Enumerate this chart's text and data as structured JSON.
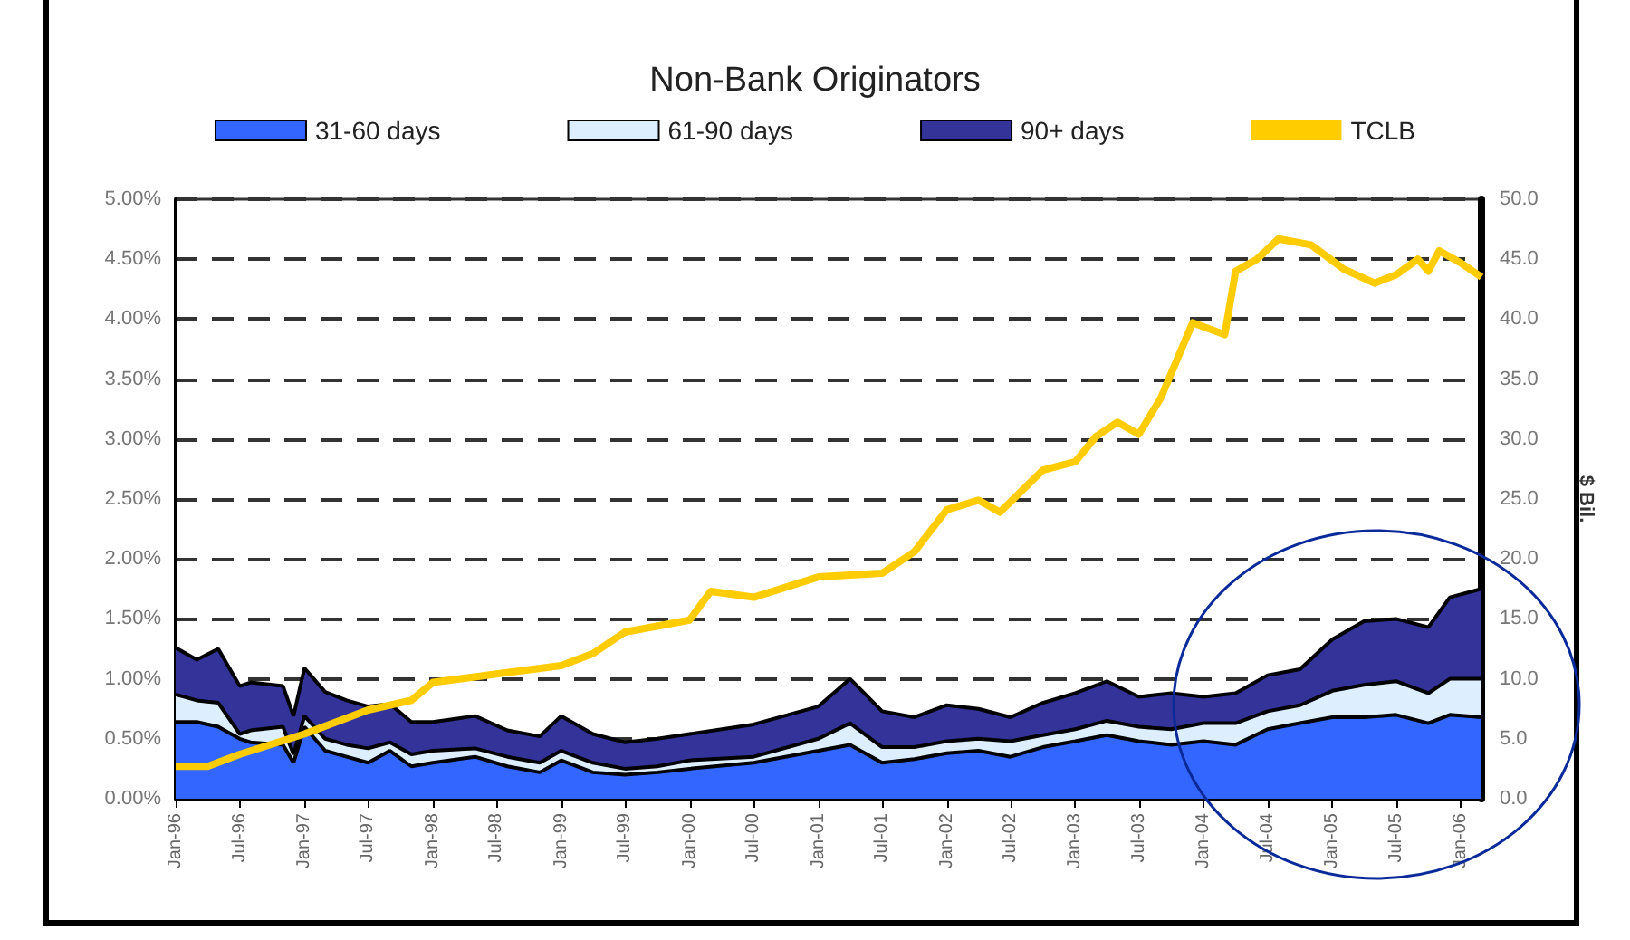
{
  "chart_data": {
    "type": "area",
    "title": "Non-Bank Originators",
    "y2label": "$ Bil.",
    "stacked": true,
    "legend": "top",
    "grid": "y",
    "x": [
      "1996-01",
      "1996-03",
      "1996-05",
      "1996-07",
      "1996-08",
      "1996-11",
      "1996-12",
      "1997-01",
      "1997-03",
      "1997-05",
      "1997-07",
      "1997-09",
      "1997-11",
      "1998-01",
      "1998-05",
      "1998-08",
      "1998-11",
      "1999-01",
      "1999-04",
      "1999-07",
      "1999-10",
      "2000-01",
      "2000-07",
      "2001-01",
      "2001-04",
      "2001-07",
      "2001-10",
      "2002-01",
      "2002-04",
      "2002-07",
      "2002-10",
      "2003-01",
      "2003-04",
      "2003-07",
      "2003-10",
      "2004-01",
      "2004-04",
      "2004-07",
      "2004-10",
      "2005-01",
      "2005-04",
      "2005-07",
      "2005-10",
      "2005-12",
      "2006-03"
    ],
    "series": [
      {
        "name": "31-60 days",
        "color": "#3366ff",
        "values": [
          0.64,
          0.64,
          0.6,
          0.5,
          0.47,
          0.45,
          0.3,
          0.6,
          0.4,
          0.35,
          0.3,
          0.4,
          0.27,
          0.3,
          0.35,
          0.27,
          0.22,
          0.32,
          0.22,
          0.2,
          0.22,
          0.25,
          0.3,
          0.4,
          0.45,
          0.3,
          0.33,
          0.38,
          0.4,
          0.35,
          0.43,
          0.48,
          0.53,
          0.48,
          0.45,
          0.48,
          0.45,
          0.58,
          0.63,
          0.68,
          0.68,
          0.7,
          0.63,
          0.7,
          0.68
        ]
      },
      {
        "name": "61-90 days",
        "color": "#ddeeff",
        "values": [
          0.23,
          0.18,
          0.2,
          0.04,
          0.1,
          0.15,
          0.07,
          0.09,
          0.1,
          0.1,
          0.12,
          0.07,
          0.1,
          0.1,
          0.07,
          0.08,
          0.08,
          0.08,
          0.08,
          0.05,
          0.05,
          0.07,
          0.05,
          0.1,
          0.18,
          0.13,
          0.1,
          0.1,
          0.1,
          0.13,
          0.1,
          0.1,
          0.12,
          0.12,
          0.13,
          0.15,
          0.18,
          0.15,
          0.15,
          0.22,
          0.27,
          0.28,
          0.25,
          0.3,
          0.32
        ]
      },
      {
        "name": "90+ days",
        "color": "#333399",
        "values": [
          0.39,
          0.34,
          0.45,
          0.4,
          0.4,
          0.34,
          0.32,
          0.4,
          0.39,
          0.37,
          0.35,
          0.32,
          0.27,
          0.24,
          0.27,
          0.22,
          0.22,
          0.29,
          0.24,
          0.22,
          0.23,
          0.22,
          0.27,
          0.27,
          0.37,
          0.3,
          0.25,
          0.3,
          0.25,
          0.2,
          0.27,
          0.3,
          0.33,
          0.25,
          0.3,
          0.22,
          0.25,
          0.3,
          0.3,
          0.43,
          0.53,
          0.52,
          0.55,
          0.68,
          0.75
        ]
      },
      {
        "name": "TCLB",
        "type": "line",
        "axis": "y2",
        "color": "#ffcc00",
        "marker": "none",
        "x": [
          "1996-01",
          "1996-04",
          "1996-07",
          "1997-01",
          "1997-07",
          "1997-11",
          "1998-01",
          "1998-07",
          "1999-01",
          "1999-04",
          "1999-07",
          "2000-01",
          "2000-03",
          "2000-07",
          "2001-01",
          "2001-07",
          "2001-10",
          "2002-01",
          "2002-04",
          "2002-06",
          "2002-10",
          "2003-01",
          "2003-03",
          "2003-05",
          "2003-07",
          "2003-09",
          "2003-12",
          "2004-03",
          "2004-04",
          "2004-06",
          "2004-08",
          "2004-11",
          "2005-02",
          "2005-05",
          "2005-07",
          "2005-09",
          "2005-10",
          "2005-11",
          "2006-01",
          "2006-03"
        ],
        "values": [
          2.7,
          2.7,
          3.7,
          5.4,
          7.4,
          8.2,
          9.7,
          10.4,
          11.1,
          12.1,
          13.9,
          14.9,
          17.3,
          16.8,
          18.5,
          18.8,
          20.6,
          24.1,
          24.9,
          23.9,
          27.4,
          28.1,
          30.2,
          31.4,
          30.4,
          33.4,
          39.7,
          38.7,
          44,
          45,
          46.7,
          46.2,
          44.2,
          43,
          43.7,
          45,
          44,
          45.7,
          44.7,
          43.5
        ]
      }
    ],
    "xlim": [
      "1996-01",
      "2006-03"
    ],
    "xticks": [
      {
        "value": "1996-01",
        "label": "Jan-96"
      },
      {
        "value": "1996-07",
        "label": "Jul-96"
      },
      {
        "value": "1997-01",
        "label": "Jan-97"
      },
      {
        "value": "1997-07",
        "label": "Jul-97"
      },
      {
        "value": "1998-01",
        "label": "Jan-98"
      },
      {
        "value": "1998-07",
        "label": "Jul-98"
      },
      {
        "value": "1999-01",
        "label": "Jan-99"
      },
      {
        "value": "1999-07",
        "label": "Jul-99"
      },
      {
        "value": "2000-01",
        "label": "Jan-00"
      },
      {
        "value": "2000-07",
        "label": "Jul-00"
      },
      {
        "value": "2001-01",
        "label": "Jan-01"
      },
      {
        "value": "2001-07",
        "label": "Jul-01"
      },
      {
        "value": "2002-01",
        "label": "Jan-02"
      },
      {
        "value": "2002-07",
        "label": "Jul-02"
      },
      {
        "value": "2003-01",
        "label": "Jan-03"
      },
      {
        "value": "2003-07",
        "label": "Jul-03"
      },
      {
        "value": "2004-01",
        "label": "Jan-04"
      },
      {
        "value": "2004-07",
        "label": "Jul-04"
      },
      {
        "value": "2005-01",
        "label": "Jan-05"
      },
      {
        "value": "2005-07",
        "label": "Jul-05"
      },
      {
        "value": "2006-01",
        "label": "Jan-06"
      }
    ],
    "ylim": [
      0,
      5
    ],
    "yticks": [
      {
        "value": 0,
        "label": "0.00%"
      },
      {
        "value": 0.5,
        "label": "0.50%"
      },
      {
        "value": 1,
        "label": "1.00%"
      },
      {
        "value": 1.5,
        "label": "1.50%"
      },
      {
        "value": 2,
        "label": "2.00%"
      },
      {
        "value": 2.5,
        "label": "2.50%"
      },
      {
        "value": 3,
        "label": "3.00%"
      },
      {
        "value": 3.5,
        "label": "3.50%"
      },
      {
        "value": 4,
        "label": "4.00%"
      },
      {
        "value": 4.5,
        "label": "4.50%"
      },
      {
        "value": 5,
        "label": "5.00%"
      }
    ],
    "y2lim": [
      0,
      50
    ],
    "y2ticks": [
      {
        "value": 0,
        "label": "0.0"
      },
      {
        "value": 5,
        "label": "5.0"
      },
      {
        "value": 10,
        "label": "10.0"
      },
      {
        "value": 15,
        "label": "15.0"
      },
      {
        "value": 20,
        "label": "20.0"
      },
      {
        "value": 25,
        "label": "25.0"
      },
      {
        "value": 30,
        "label": "30.0"
      },
      {
        "value": 35,
        "label": "35.0"
      },
      {
        "value": 40,
        "label": "40.0"
      },
      {
        "value": 45,
        "label": "45.0"
      },
      {
        "value": 50,
        "label": "50.0"
      }
    ]
  }
}
